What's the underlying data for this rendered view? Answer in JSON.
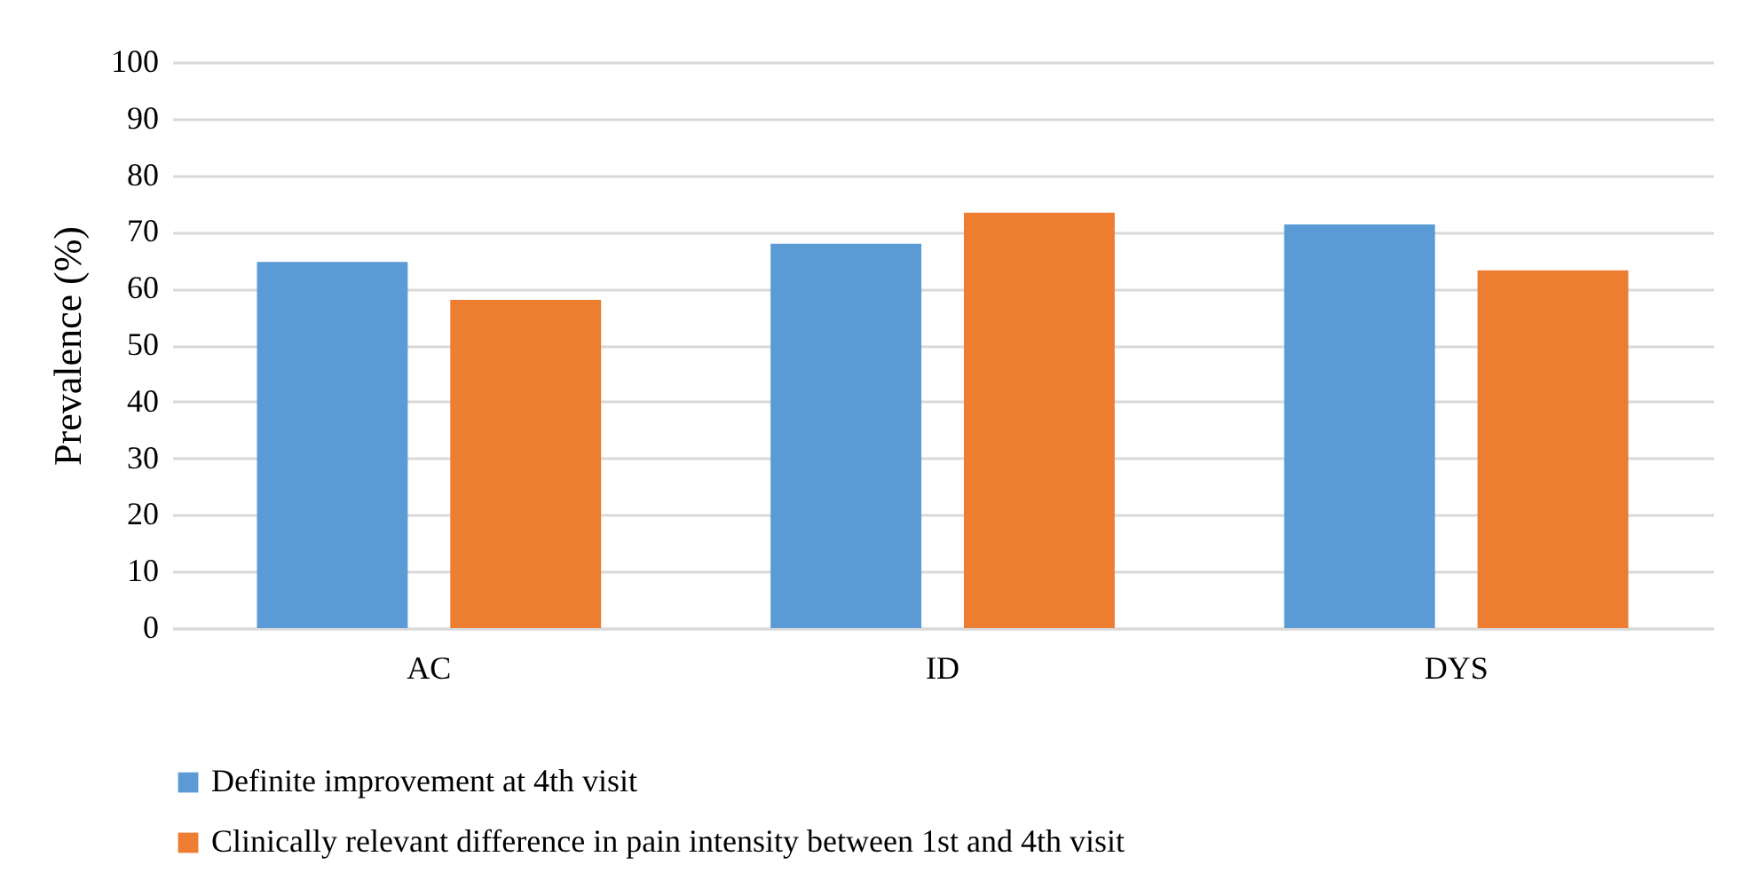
{
  "chart_data": {
    "type": "bar",
    "ylabel": "Prevalence (%)",
    "categories": [
      "AC",
      "ID",
      "DYS"
    ],
    "series": [
      {
        "name": "Definite improvement at 4th visit",
        "color": "#5b9bd5",
        "values": [
          64.7,
          67.9,
          71.3
        ]
      },
      {
        "name": "Clinically relevant  difference in pain intensity between 1st and 4th visit",
        "color": "#ed7d31",
        "values": [
          58.0,
          73.4,
          63.2
        ]
      }
    ],
    "ylim": [
      0,
      100
    ],
    "yticks": [
      0,
      10,
      20,
      30,
      40,
      50,
      60,
      70,
      80,
      90,
      100
    ],
    "grid": "y",
    "legend": "bottom"
  }
}
